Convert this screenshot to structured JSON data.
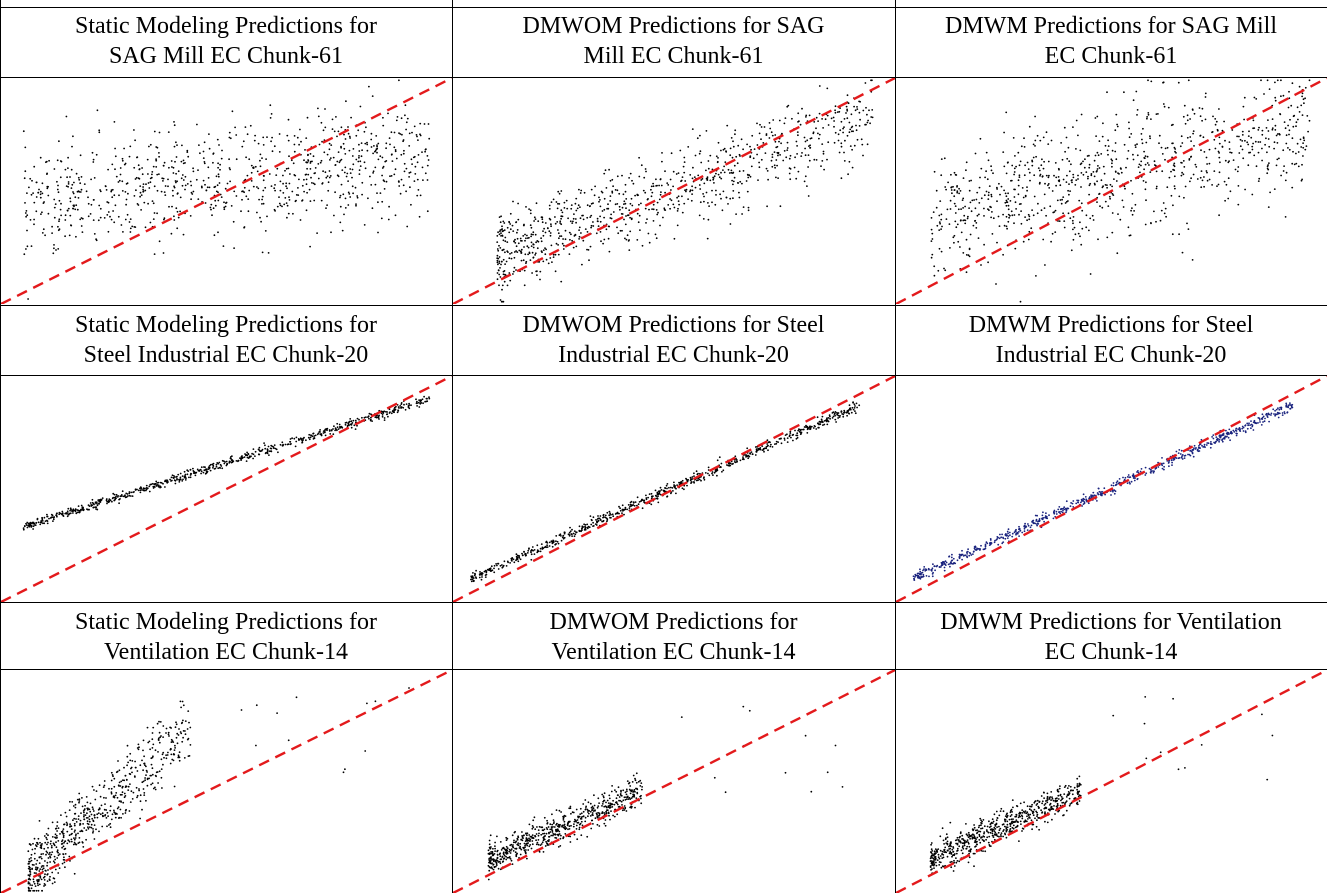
{
  "chart_data": [
    {
      "type": "scatter",
      "title_line1": "Static Modeling Predictions for",
      "title_line2": "SAG Mill EC Chunk-61",
      "pattern": "diffuse-flat",
      "ylim": [
        0,
        1
      ],
      "xlim": [
        0,
        1
      ],
      "reference_line": {
        "style": "dashed",
        "color": "#e31a1c",
        "label": "y = x"
      },
      "point_color": "#000000"
    },
    {
      "type": "scatter",
      "title_line1": "DMWOM Predictions for SAG",
      "title_line2": "Mill EC Chunk-61",
      "pattern": "diffuse-aligned",
      "ylim": [
        0,
        1
      ],
      "xlim": [
        0,
        1
      ],
      "reference_line": {
        "style": "dashed",
        "color": "#e31a1c",
        "label": "y = x"
      },
      "point_color": "#000000"
    },
    {
      "type": "scatter",
      "title_line1": "DMWM Predictions for SAG Mill",
      "title_line2": "EC Chunk-61",
      "pattern": "diffuse-mid",
      "ylim": [
        0,
        1
      ],
      "xlim": [
        0,
        1
      ],
      "reference_line": {
        "style": "dashed",
        "color": "#e31a1c",
        "label": "y = x"
      },
      "point_color": "#000000"
    },
    {
      "type": "scatter",
      "title_line1": "Static Modeling Predictions for",
      "title_line2": "Steel Industrial EC Chunk-20",
      "pattern": "tight-offset",
      "ylim": [
        0,
        1
      ],
      "xlim": [
        0,
        1
      ],
      "reference_line": {
        "style": "dashed",
        "color": "#e31a1c",
        "label": "y = x"
      },
      "point_color": "#000000"
    },
    {
      "type": "scatter",
      "title_line1": "DMWOM Predictions for Steel",
      "title_line2": "Industrial EC Chunk-20",
      "pattern": "tight-on",
      "ylim": [
        0,
        1
      ],
      "xlim": [
        0,
        1
      ],
      "reference_line": {
        "style": "dashed",
        "color": "#e31a1c",
        "label": "y = x"
      },
      "point_color": "#000000"
    },
    {
      "type": "scatter",
      "title_line1": "DMWM Predictions for Steel",
      "title_line2": "Industrial EC Chunk-20",
      "pattern": "tight-on",
      "ylim": [
        0,
        1
      ],
      "xlim": [
        0,
        1
      ],
      "reference_line": {
        "style": "dashed",
        "color": "#e31a1c",
        "label": "y = x"
      },
      "point_color": "#1a237e"
    },
    {
      "type": "scatter",
      "title_line1": "Static Modeling Predictions for",
      "title_line2": "Ventilation EC Chunk-14",
      "pattern": "cluster-steep",
      "ylim": [
        0,
        1
      ],
      "xlim": [
        0,
        1
      ],
      "reference_line": {
        "style": "dashed",
        "color": "#e31a1c",
        "label": "y = x"
      },
      "point_color": "#000000"
    },
    {
      "type": "scatter",
      "title_line1": "DMWOM Predictions for",
      "title_line2": "Ventilation EC Chunk-14",
      "pattern": "cluster-shallow",
      "ylim": [
        0,
        1
      ],
      "xlim": [
        0,
        1
      ],
      "reference_line": {
        "style": "dashed",
        "color": "#e31a1c",
        "label": "y = x"
      },
      "point_color": "#000000"
    },
    {
      "type": "scatter",
      "title_line1": "DMWM Predictions for Ventilation",
      "title_line2": "EC Chunk-14",
      "pattern": "cluster-shallow",
      "ylim": [
        0,
        1
      ],
      "xlim": [
        0,
        1
      ],
      "reference_line": {
        "style": "dashed",
        "color": "#e31a1c",
        "label": "y = x"
      },
      "point_color": "#000000"
    }
  ],
  "colors": {
    "reference_line": "#e31a1c",
    "grid_border": "#000000",
    "background": "#ffffff"
  }
}
